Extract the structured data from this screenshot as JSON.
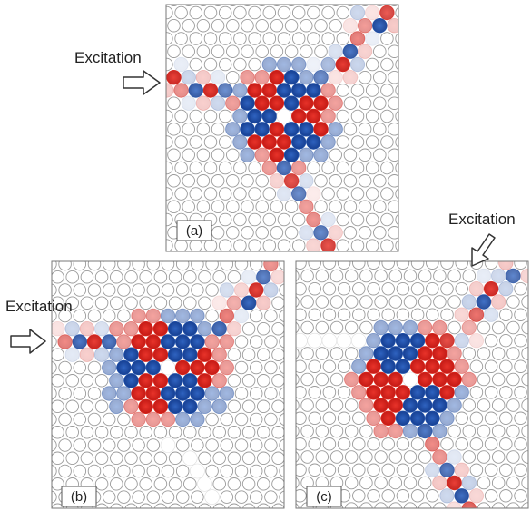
{
  "panels": [
    {
      "id": "a",
      "label": "(a)",
      "excitation_label": "Excitation"
    },
    {
      "id": "b",
      "label": "(b)",
      "excitation_label": "Excitation"
    },
    {
      "id": "c",
      "label": "(c)",
      "excitation_label": "Excitation"
    }
  ],
  "colors": {
    "positive_field": "#d9261c",
    "negative_field": "#1f4fa8",
    "rod_outline": "#9a9a9a",
    "frame": "#666666",
    "arrow_fill": "#ffffff",
    "arrow_stroke": "#333333"
  }
}
